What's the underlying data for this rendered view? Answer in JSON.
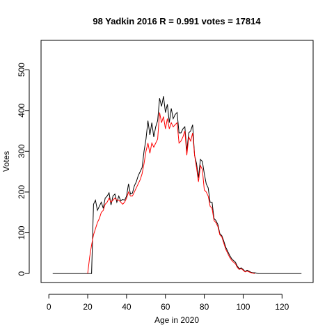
{
  "chart_data": {
    "type": "line",
    "title": "98 Yadkin 2016 R = 0.991 votes = 17814",
    "xlabel": "Age in 2020",
    "ylabel": "Votes",
    "xlim": [
      -4,
      136
    ],
    "ylim": [
      -22,
      572
    ],
    "x_ticks": [
      0,
      20,
      40,
      60,
      80,
      100,
      120
    ],
    "y_ticks": [
      0,
      100,
      200,
      300,
      400,
      500
    ],
    "grid": false,
    "series": [
      {
        "color": "#000000",
        "points": [
          [
            2,
            0
          ],
          [
            3,
            0
          ],
          [
            4,
            0
          ],
          [
            5,
            0
          ],
          [
            6,
            0
          ],
          [
            7,
            0
          ],
          [
            8,
            0
          ],
          [
            9,
            0
          ],
          [
            10,
            0
          ],
          [
            11,
            0
          ],
          [
            12,
            0
          ],
          [
            13,
            0
          ],
          [
            14,
            0
          ],
          [
            15,
            0
          ],
          [
            16,
            0
          ],
          [
            17,
            0
          ],
          [
            18,
            0
          ],
          [
            19,
            0
          ],
          [
            20,
            0
          ],
          [
            21,
            0
          ],
          [
            22,
            0
          ],
          [
            23,
            170
          ],
          [
            24,
            180
          ],
          [
            25,
            155
          ],
          [
            26,
            165
          ],
          [
            27,
            175
          ],
          [
            28,
            160
          ],
          [
            29,
            185
          ],
          [
            30,
            190
          ],
          [
            31,
            198
          ],
          [
            32,
            168
          ],
          [
            33,
            190
          ],
          [
            34,
            195
          ],
          [
            35,
            175
          ],
          [
            36,
            190
          ],
          [
            37,
            178
          ],
          [
            38,
            182
          ],
          [
            39,
            180
          ],
          [
            40,
            190
          ],
          [
            41,
            220
          ],
          [
            42,
            195
          ],
          [
            43,
            197
          ],
          [
            44,
            215
          ],
          [
            45,
            225
          ],
          [
            46,
            240
          ],
          [
            47,
            250
          ],
          [
            48,
            260
          ],
          [
            49,
            300
          ],
          [
            50,
            330
          ],
          [
            51,
            375
          ],
          [
            52,
            340
          ],
          [
            53,
            370
          ],
          [
            54,
            335
          ],
          [
            55,
            360
          ],
          [
            56,
            375
          ],
          [
            57,
            430
          ],
          [
            58,
            410
          ],
          [
            59,
            435
          ],
          [
            60,
            395
          ],
          [
            61,
            415
          ],
          [
            62,
            370
          ],
          [
            63,
            405
          ],
          [
            64,
            380
          ],
          [
            65,
            390
          ],
          [
            66,
            395
          ],
          [
            67,
            345
          ],
          [
            68,
            345
          ],
          [
            69,
            355
          ],
          [
            70,
            360
          ],
          [
            71,
            300
          ],
          [
            72,
            345
          ],
          [
            73,
            350
          ],
          [
            74,
            365
          ],
          [
            75,
            290
          ],
          [
            76,
            270
          ],
          [
            77,
            235
          ],
          [
            78,
            280
          ],
          [
            79,
            275
          ],
          [
            80,
            245
          ],
          [
            81,
            220
          ],
          [
            82,
            210
          ],
          [
            83,
            175
          ],
          [
            84,
            175
          ],
          [
            85,
            135
          ],
          [
            86,
            130
          ],
          [
            87,
            120
          ],
          [
            88,
            98
          ],
          [
            89,
            93
          ],
          [
            90,
            80
          ],
          [
            91,
            65
          ],
          [
            92,
            55
          ],
          [
            93,
            45
          ],
          [
            94,
            37
          ],
          [
            95,
            32
          ],
          [
            96,
            28
          ],
          [
            97,
            18
          ],
          [
            98,
            12
          ],
          [
            99,
            14
          ],
          [
            100,
            10
          ],
          [
            101,
            5
          ],
          [
            102,
            8
          ],
          [
            103,
            6
          ],
          [
            104,
            3
          ],
          [
            105,
            2
          ],
          [
            106,
            2
          ],
          [
            107,
            1
          ],
          [
            108,
            0
          ],
          [
            109,
            0
          ],
          [
            110,
            0
          ],
          [
            111,
            0
          ],
          [
            112,
            0
          ],
          [
            113,
            0
          ],
          [
            114,
            0
          ],
          [
            115,
            0
          ],
          [
            116,
            0
          ],
          [
            117,
            0
          ],
          [
            118,
            0
          ],
          [
            119,
            0
          ],
          [
            120,
            0
          ],
          [
            121,
            0
          ],
          [
            122,
            0
          ],
          [
            123,
            0
          ],
          [
            124,
            0
          ],
          [
            125,
            0
          ],
          [
            126,
            0
          ],
          [
            127,
            0
          ],
          [
            128,
            0
          ],
          [
            129,
            0
          ],
          [
            130,
            0
          ]
        ]
      },
      {
        "color": "#ff0000",
        "points": [
          [
            20,
            0
          ],
          [
            21,
            40
          ],
          [
            22,
            70
          ],
          [
            23,
            95
          ],
          [
            24,
            110
          ],
          [
            25,
            125
          ],
          [
            26,
            135
          ],
          [
            27,
            150
          ],
          [
            28,
            155
          ],
          [
            29,
            170
          ],
          [
            30,
            175
          ],
          [
            31,
            185
          ],
          [
            32,
            175
          ],
          [
            33,
            180
          ],
          [
            34,
            185
          ],
          [
            35,
            180
          ],
          [
            36,
            180
          ],
          [
            37,
            175
          ],
          [
            38,
            170
          ],
          [
            39,
            175
          ],
          [
            40,
            185
          ],
          [
            41,
            200
          ],
          [
            42,
            190
          ],
          [
            43,
            190
          ],
          [
            44,
            200
          ],
          [
            45,
            210
          ],
          [
            46,
            220
          ],
          [
            47,
            230
          ],
          [
            48,
            245
          ],
          [
            49,
            270
          ],
          [
            50,
            300
          ],
          [
            51,
            320
          ],
          [
            52,
            295
          ],
          [
            53,
            320
          ],
          [
            54,
            310
          ],
          [
            55,
            320
          ],
          [
            56,
            330
          ],
          [
            57,
            395
          ],
          [
            58,
            370
          ],
          [
            59,
            385
          ],
          [
            60,
            355
          ],
          [
            61,
            380
          ],
          [
            62,
            355
          ],
          [
            63,
            370
          ],
          [
            64,
            360
          ],
          [
            65,
            365
          ],
          [
            66,
            370
          ],
          [
            67,
            320
          ],
          [
            68,
            325
          ],
          [
            69,
            335
          ],
          [
            70,
            350
          ],
          [
            71,
            290
          ],
          [
            72,
            335
          ],
          [
            73,
            325
          ],
          [
            74,
            345
          ],
          [
            75,
            290
          ],
          [
            76,
            260
          ],
          [
            77,
            225
          ],
          [
            78,
            265
          ],
          [
            79,
            255
          ],
          [
            80,
            205
          ],
          [
            81,
            200
          ],
          [
            82,
            190
          ],
          [
            83,
            165
          ],
          [
            84,
            160
          ],
          [
            85,
            130
          ],
          [
            86,
            125
          ],
          [
            87,
            115
          ],
          [
            88,
            95
          ],
          [
            89,
            90
          ],
          [
            90,
            75
          ],
          [
            91,
            60
          ],
          [
            92,
            50
          ],
          [
            93,
            40
          ],
          [
            94,
            33
          ],
          [
            95,
            28
          ],
          [
            96,
            24
          ],
          [
            97,
            15
          ],
          [
            98,
            10
          ],
          [
            99,
            12
          ],
          [
            100,
            8
          ],
          [
            101,
            4
          ],
          [
            102,
            6
          ],
          [
            103,
            4
          ],
          [
            104,
            2
          ],
          [
            105,
            1
          ],
          [
            106,
            0
          ]
        ]
      }
    ]
  }
}
